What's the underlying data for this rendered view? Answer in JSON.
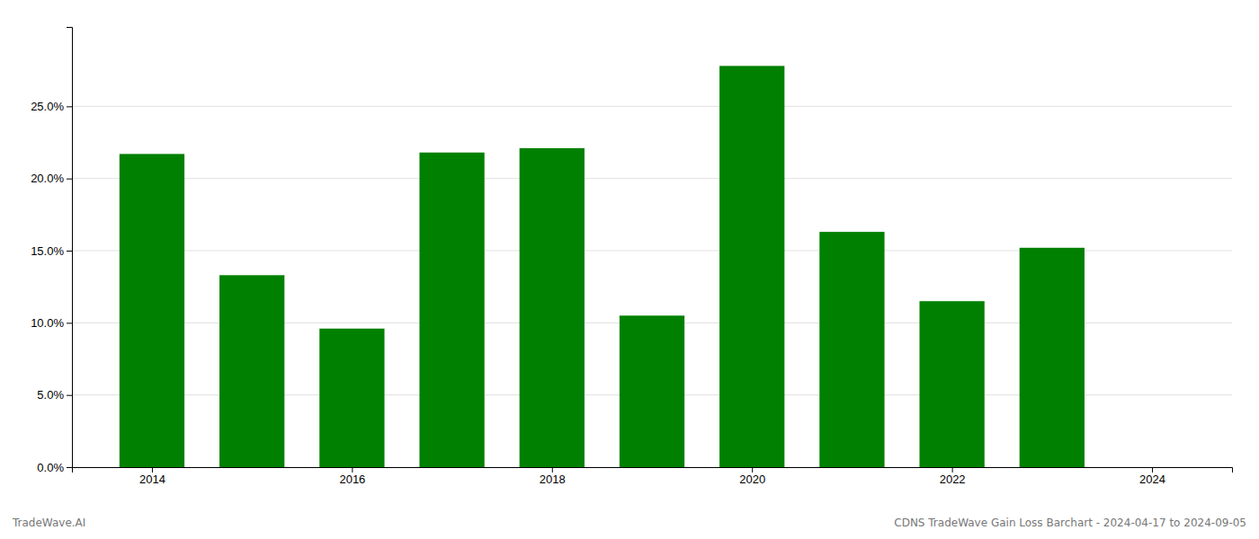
{
  "chart_data": {
    "type": "bar",
    "title": "CDNS TradeWave Gain Loss Barchart - 2024-04-17 to 2024-09-05",
    "annotations": [
      "TradeWave.AI"
    ],
    "x": [
      2014,
      2015,
      2016,
      2017,
      2018,
      2019,
      2020,
      2021,
      2022,
      2023
    ],
    "values": [
      0.217,
      0.133,
      0.096,
      0.218,
      0.221,
      0.105,
      0.278,
      0.163,
      0.115,
      0.152
    ],
    "color": "#008000",
    "xlim": [
      2013.2,
      2024.8
    ],
    "xticks": [
      2014,
      2016,
      2018,
      2020,
      2022,
      2024
    ],
    "ylim": [
      0,
      0.305
    ],
    "yticks": [
      {
        "value": 0.0,
        "label": "0.0%"
      },
      {
        "value": 0.05,
        "label": "5.0%"
      },
      {
        "value": 0.1,
        "label": "10.0%"
      },
      {
        "value": 0.15,
        "label": "15.0%"
      },
      {
        "value": 0.2,
        "label": "20.0%"
      },
      {
        "value": 0.25,
        "label": "25.0%"
      }
    ],
    "grid": true
  }
}
